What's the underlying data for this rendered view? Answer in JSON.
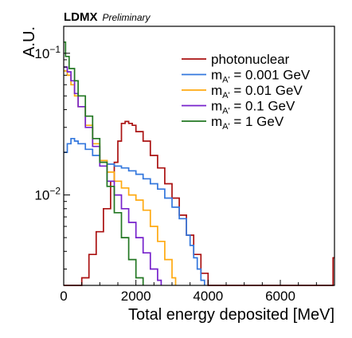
{
  "chart_data": {
    "type": "line",
    "step": true,
    "experiment_label": "LDMX",
    "status_label": "Preliminary",
    "xlabel": "Total energy deposited [MeV]",
    "ylabel": "A.U.",
    "xlim": [
      0,
      7500
    ],
    "ylim": [
      0.0023,
      0.155
    ],
    "yscale": "log",
    "grid": false,
    "legend_position": "top-right",
    "x_ticks": [
      {
        "value": 0,
        "label": "0"
      },
      {
        "value": 2000,
        "label": "2000"
      },
      {
        "value": 4000,
        "label": "4000"
      },
      {
        "value": 6000,
        "label": "6000"
      }
    ],
    "y_ticks": [
      {
        "value": 0.01,
        "label": "10",
        "exponent": "−2"
      },
      {
        "value": 0.1,
        "label": "10",
        "exponent": "−1"
      }
    ],
    "series": [
      {
        "name": "photonuclear",
        "color": "#aa1111",
        "x": [
          0,
          300,
          500,
          700,
          900,
          1100,
          1300,
          1400,
          1500,
          1600,
          1700,
          1800,
          1900,
          2000,
          2200,
          2400,
          2600,
          2800,
          3000,
          3200,
          3400,
          3600,
          3800,
          4000,
          4050,
          7440,
          7460,
          7500
        ],
        "y": [
          0.0023,
          0.0023,
          0.0026,
          0.0038,
          0.0055,
          0.008,
          0.0125,
          0.017,
          0.024,
          0.032,
          0.033,
          0.032,
          0.031,
          0.028,
          0.024,
          0.019,
          0.0155,
          0.012,
          0.0095,
          0.0072,
          0.0052,
          0.0038,
          0.0028,
          0.0023,
          0.0023,
          0.0023,
          0.0036,
          0.0036
        ]
      },
      {
        "name": "m_{A'} = 0.001 GeV",
        "label_main": "m",
        "label_sub": "A'",
        "label_tail": " = 0.001 GeV",
        "color": "#3377dd",
        "x": [
          0,
          100,
          200,
          300,
          400,
          600,
          800,
          1000,
          1200,
          1400,
          1600,
          1800,
          2000,
          2200,
          2400,
          2600,
          2800,
          3000,
          3200,
          3400,
          3500,
          3600,
          3700,
          3800,
          3900
        ],
        "y": [
          0.02,
          0.023,
          0.025,
          0.024,
          0.023,
          0.021,
          0.019,
          0.0175,
          0.0165,
          0.016,
          0.0155,
          0.0148,
          0.014,
          0.013,
          0.012,
          0.011,
          0.0095,
          0.0082,
          0.0068,
          0.0052,
          0.0044,
          0.0036,
          0.003,
          0.0025,
          0.0023
        ]
      },
      {
        "name": "m_{A'} = 0.01 GeV",
        "label_main": "m",
        "label_sub": "A'",
        "label_tail": " = 0.01 GeV",
        "color": "#ffaa11",
        "x": [
          0,
          100,
          200,
          300,
          400,
          600,
          800,
          1000,
          1200,
          1400,
          1600,
          1800,
          2000,
          2200,
          2400,
          2600,
          2800,
          3000,
          3100
        ],
        "y": [
          0.075,
          0.07,
          0.06,
          0.05,
          0.042,
          0.031,
          0.023,
          0.0175,
          0.0145,
          0.0125,
          0.0112,
          0.01,
          0.0092,
          0.0078,
          0.006,
          0.0047,
          0.0035,
          0.0026,
          0.0023
        ]
      },
      {
        "name": "m_{A'} = 0.1 GeV",
        "label_main": "m",
        "label_sub": "A'",
        "label_tail": " = 0.1 GeV",
        "color": "#7722cc",
        "x": [
          0,
          100,
          200,
          300,
          400,
          600,
          800,
          1000,
          1200,
          1400,
          1600,
          1800,
          2000,
          2200,
          2400,
          2600,
          2700
        ],
        "y": [
          0.08,
          0.074,
          0.064,
          0.052,
          0.042,
          0.03,
          0.022,
          0.016,
          0.0125,
          0.01,
          0.008,
          0.0064,
          0.005,
          0.0039,
          0.003,
          0.0025,
          0.0023
        ]
      },
      {
        "name": "m_{A'} = 1 GeV",
        "label_main": "m",
        "label_sub": "A'",
        "label_tail": " = 1 GeV",
        "color": "#227722",
        "x": [
          0,
          50,
          150,
          300,
          400,
          600,
          800,
          1000,
          1200,
          1400,
          1600,
          1800,
          2000,
          2200
        ],
        "y": [
          0.12,
          0.095,
          0.078,
          0.064,
          0.05,
          0.036,
          0.025,
          0.017,
          0.0115,
          0.0075,
          0.005,
          0.0035,
          0.0026,
          0.0023
        ]
      }
    ]
  }
}
